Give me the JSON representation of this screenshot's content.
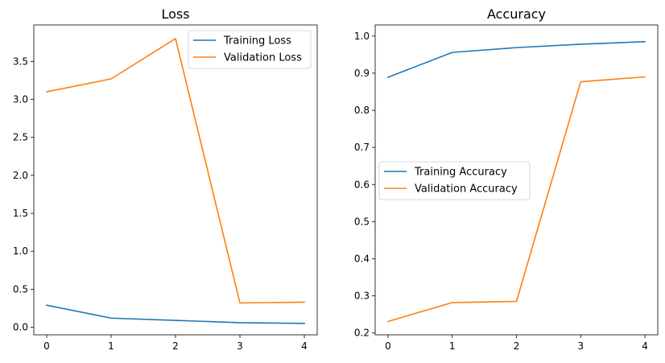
{
  "colors": {
    "training": "#1f77b4",
    "validation": "#ff7f0e",
    "axes": "#000000",
    "legend_border": "#cccccc"
  },
  "chart_data": [
    {
      "type": "line",
      "title": "Loss",
      "xlabel": "",
      "ylabel": "",
      "x": [
        0,
        1,
        2,
        3,
        4
      ],
      "xlim": [
        -0.2,
        4.2
      ],
      "ylim": [
        -0.1,
        3.98
      ],
      "xticks": [
        0,
        1,
        2,
        3,
        4
      ],
      "yticks": [
        0.0,
        0.5,
        1.0,
        1.5,
        2.0,
        2.5,
        3.0,
        3.5
      ],
      "ytick_labels": [
        "0.0",
        "0.5",
        "1.0",
        "1.5",
        "2.0",
        "2.5",
        "3.0",
        "3.5"
      ],
      "legend_position": "upper right",
      "series": [
        {
          "name": "Training Loss",
          "color_key": "training",
          "values": [
            0.29,
            0.12,
            0.09,
            0.06,
            0.05
          ]
        },
        {
          "name": "Validation Loss",
          "color_key": "validation",
          "values": [
            3.1,
            3.27,
            3.8,
            0.32,
            0.33
          ]
        }
      ]
    },
    {
      "type": "line",
      "title": "Accuracy",
      "xlabel": "",
      "ylabel": "",
      "x": [
        0,
        1,
        2,
        3,
        4
      ],
      "xlim": [
        -0.2,
        4.2
      ],
      "ylim": [
        0.195,
        1.03
      ],
      "xticks": [
        0,
        1,
        2,
        3,
        4
      ],
      "yticks": [
        0.2,
        0.3,
        0.4,
        0.5,
        0.6,
        0.7,
        0.8,
        0.9,
        1.0
      ],
      "ytick_labels": [
        "0.2",
        "0.3",
        "0.4",
        "0.5",
        "0.6",
        "0.7",
        "0.8",
        "0.9",
        "1.0"
      ],
      "legend_position": "center left",
      "series": [
        {
          "name": "Training Accuracy",
          "color_key": "training",
          "values": [
            0.889,
            0.956,
            0.969,
            0.978,
            0.985
          ]
        },
        {
          "name": "Validation Accuracy",
          "color_key": "validation",
          "values": [
            0.231,
            0.282,
            0.285,
            0.877,
            0.89
          ]
        }
      ]
    }
  ]
}
